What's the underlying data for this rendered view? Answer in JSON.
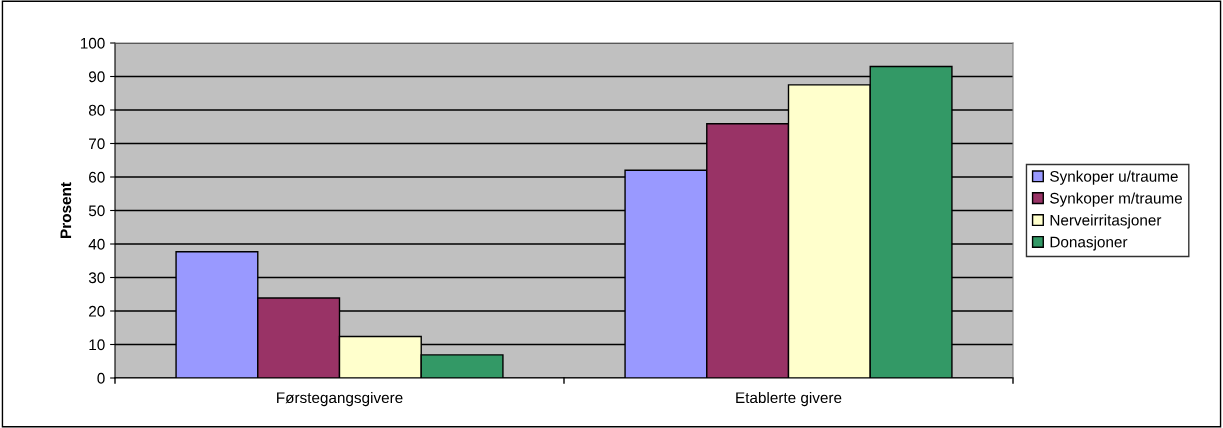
{
  "chart_data": {
    "type": "bar",
    "ylabel": "Prosent",
    "categories": [
      "Førstegangsgivere",
      "Etablerte givere"
    ],
    "series": [
      {
        "name": "Synkoper u/traume",
        "color": "#9999ff",
        "values": [
          37.7,
          62.0
        ]
      },
      {
        "name": "Synkoper m/traume",
        "color": "#993366",
        "values": [
          23.9,
          75.9
        ]
      },
      {
        "name": "Nerveirritasjoner",
        "color": "#ffffcc",
        "values": [
          12.4,
          87.5
        ]
      },
      {
        "name": "Donasjoner",
        "color": "#339966",
        "values": [
          6.9,
          93.0
        ]
      }
    ],
    "ylim": [
      0,
      100
    ],
    "yticks": [
      0,
      10,
      20,
      30,
      40,
      50,
      60,
      70,
      80,
      90,
      100
    ],
    "grid": "y",
    "legend": "right"
  }
}
